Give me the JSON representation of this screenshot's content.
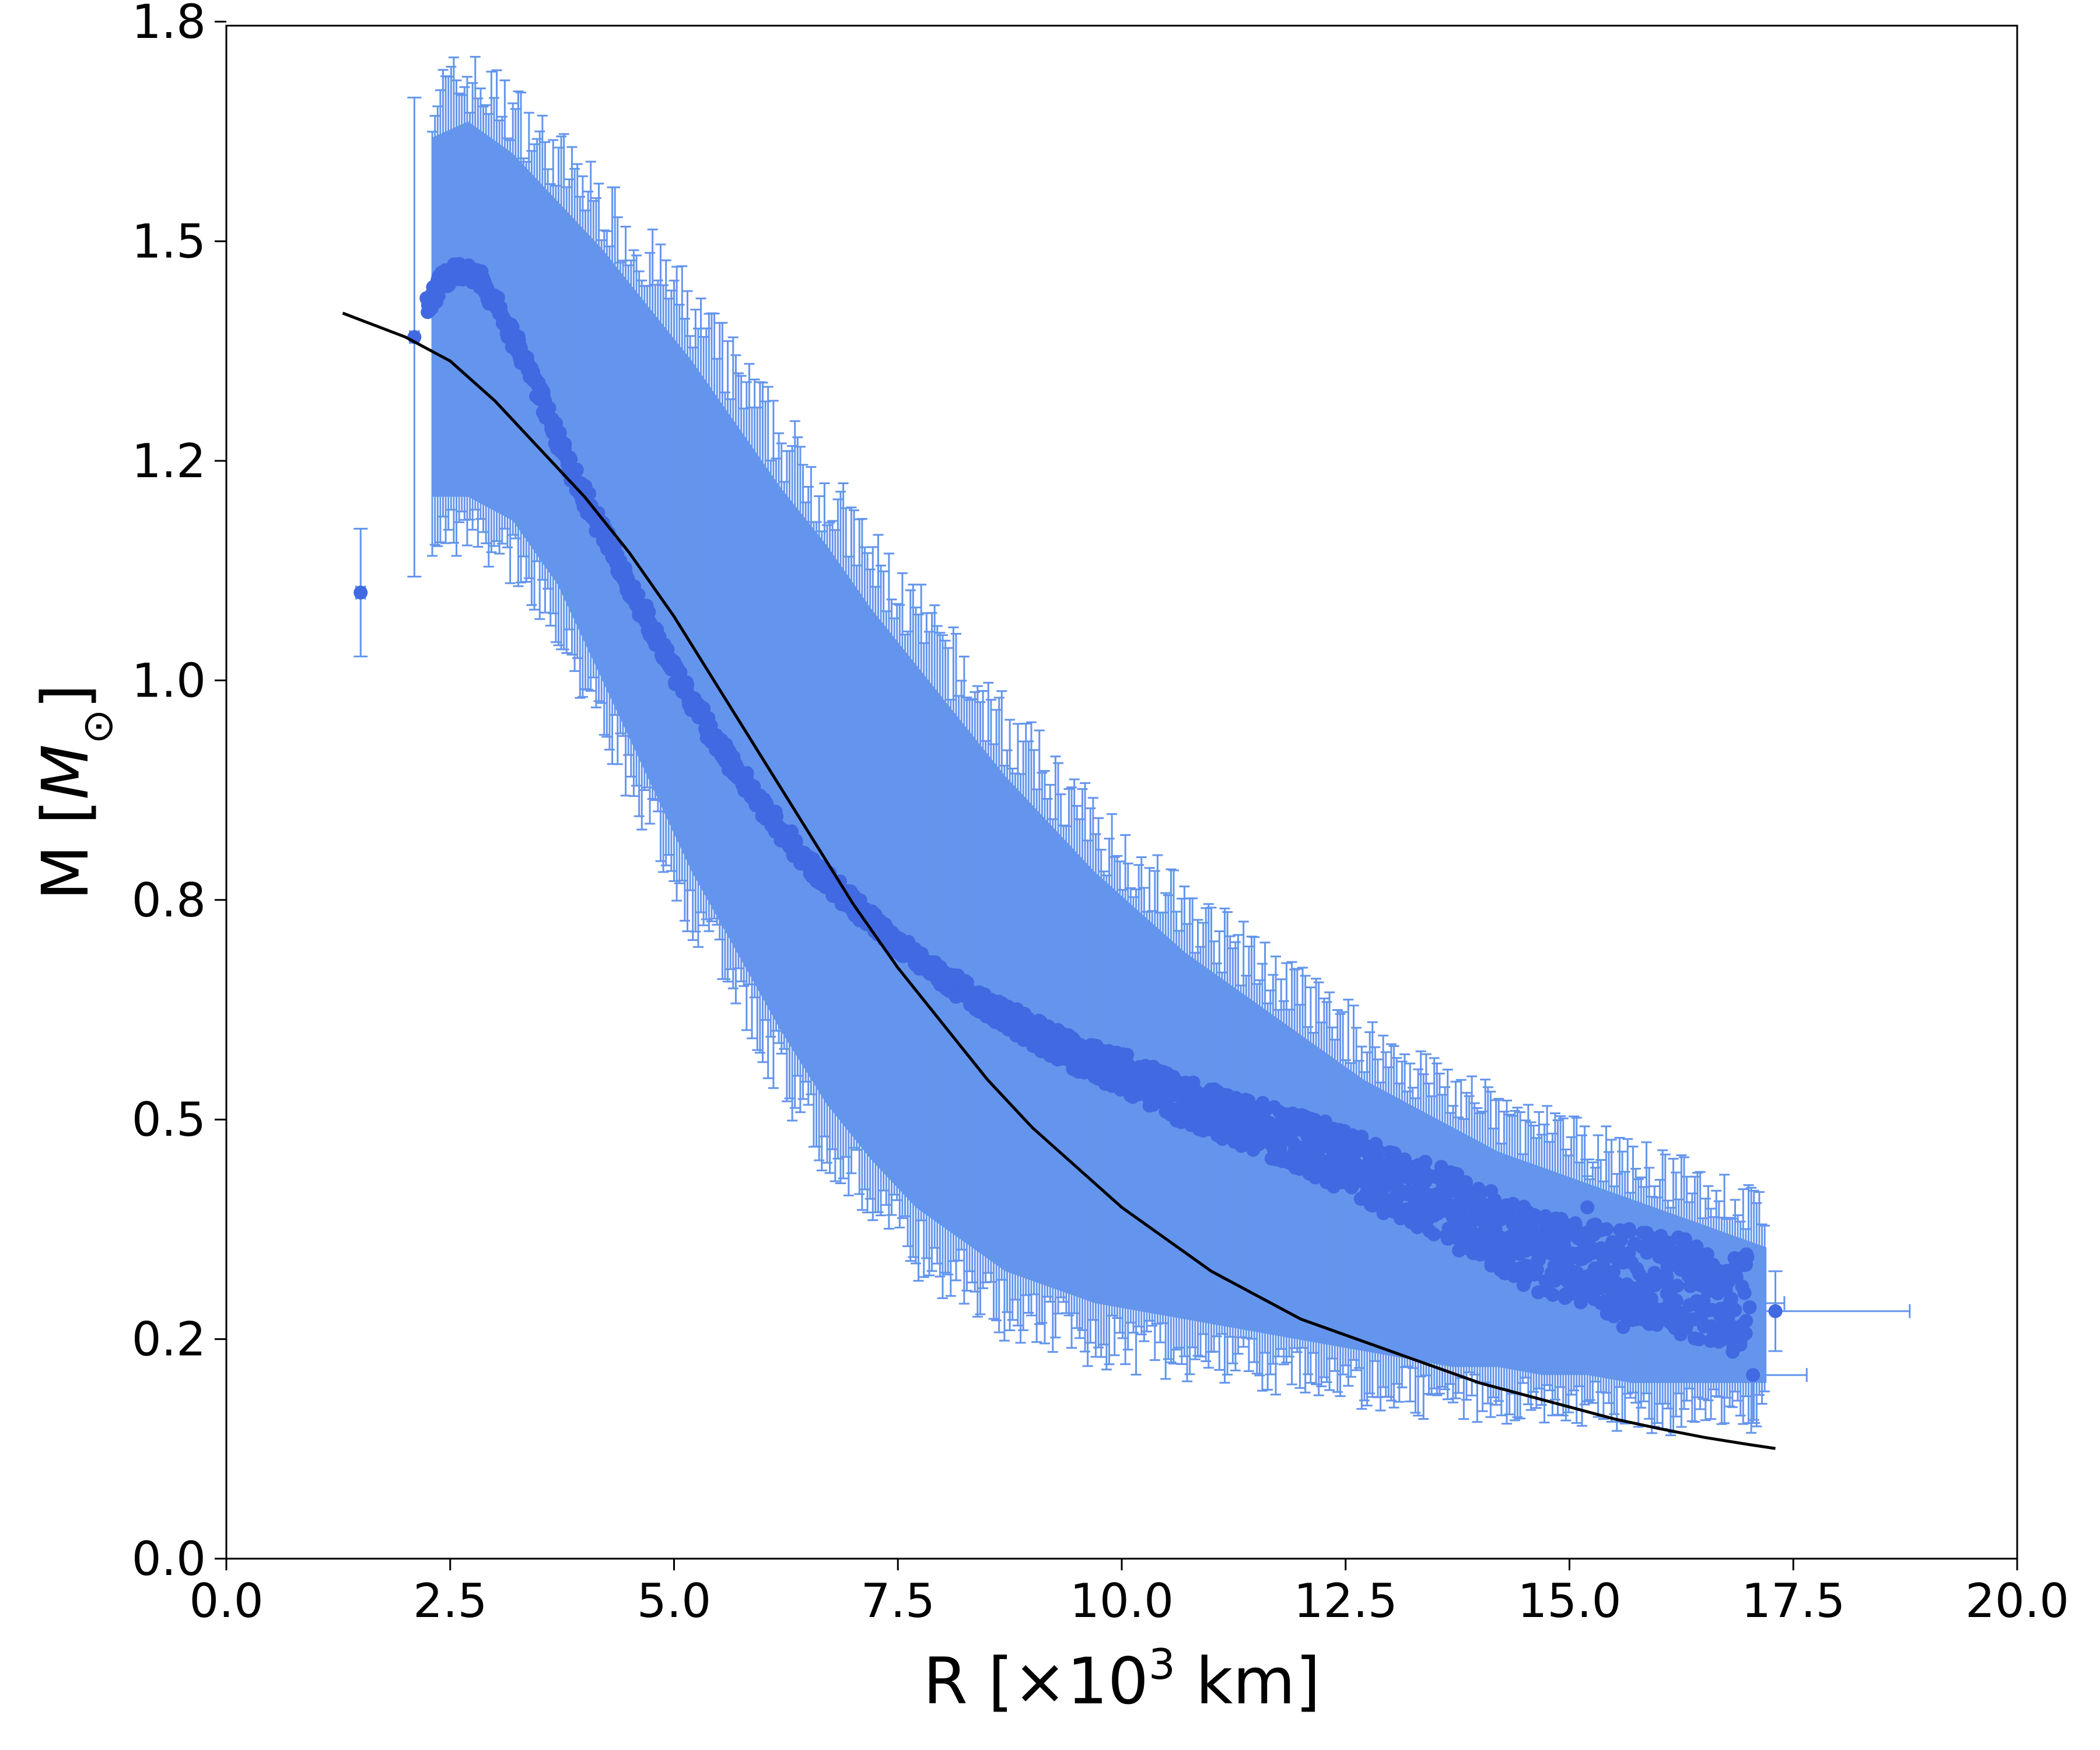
{
  "chart_data": {
    "type": "scatter",
    "xlabel": {
      "pre": "R [×10",
      "sup": "3",
      "post": " km]"
    },
    "ylabel": {
      "pre": "M [",
      "italic": "M",
      "sub": "⊙",
      "post": "]"
    },
    "xlim": [
      0,
      20
    ],
    "ylim": [
      0,
      1.92
    ],
    "xticks": [
      "0.0",
      "2.5",
      "5.0",
      "7.5",
      "10.0",
      "12.5",
      "15.0",
      "17.5",
      "20.0"
    ],
    "xtick_values": [
      0,
      2.5,
      5,
      7.5,
      10,
      12.5,
      15,
      17.5,
      20
    ],
    "yticks": [
      "0.0",
      "0.2",
      "0.5",
      "0.8",
      "1.0",
      "1.2",
      "1.5",
      "1.8"
    ],
    "ytick_values": [
      0,
      0.275,
      0.55,
      0.825,
      1.1,
      1.375,
      1.65,
      1.925
    ],
    "grid": false,
    "colors": {
      "points": "#4169e1",
      "errorbars": "#6495ed",
      "fit": "#000000"
    },
    "series": [
      {
        "kind": "points_with_errorbars",
        "ridge": [
          [
            2.25,
            1.57
          ],
          [
            2.4,
            1.6
          ],
          [
            2.55,
            1.61
          ],
          [
            2.7,
            1.61
          ],
          [
            2.85,
            1.6
          ],
          [
            3.0,
            1.57
          ],
          [
            3.25,
            1.52
          ],
          [
            3.5,
            1.46
          ],
          [
            3.75,
            1.39
          ],
          [
            4.0,
            1.33
          ],
          [
            4.5,
            1.22
          ],
          [
            5.0,
            1.11
          ],
          [
            5.5,
            1.02
          ],
          [
            6.0,
            0.94
          ],
          [
            6.5,
            0.87
          ],
          [
            7.0,
            0.82
          ],
          [
            7.5,
            0.77
          ],
          [
            8.0,
            0.73
          ],
          [
            8.5,
            0.69
          ],
          [
            9.0,
            0.66
          ],
          [
            9.5,
            0.63
          ],
          [
            10.0,
            0.61
          ],
          [
            10.5,
            0.58
          ],
          [
            11.0,
            0.56
          ],
          [
            11.5,
            0.54
          ],
          [
            12.0,
            0.52
          ],
          [
            12.5,
            0.5
          ],
          [
            13.0,
            0.47
          ],
          [
            13.5,
            0.45
          ],
          [
            14.0,
            0.42
          ],
          [
            14.5,
            0.39
          ],
          [
            15.0,
            0.37
          ],
          [
            15.5,
            0.36
          ],
          [
            16.0,
            0.35
          ],
          [
            16.5,
            0.33
          ],
          [
            17.0,
            0.32
          ]
        ],
        "band_upper": [
          [
            2.3,
            1.78
          ],
          [
            2.7,
            1.8
          ],
          [
            3.2,
            1.76
          ],
          [
            3.7,
            1.7
          ],
          [
            4.2,
            1.64
          ],
          [
            4.7,
            1.57
          ],
          [
            5.2,
            1.5
          ],
          [
            5.7,
            1.42
          ],
          [
            6.2,
            1.34
          ],
          [
            6.7,
            1.27
          ],
          [
            7.2,
            1.19
          ],
          [
            7.7,
            1.12
          ],
          [
            8.2,
            1.05
          ],
          [
            8.7,
            0.98
          ],
          [
            9.2,
            0.92
          ],
          [
            9.7,
            0.86
          ],
          [
            10.2,
            0.81
          ],
          [
            10.7,
            0.76
          ],
          [
            11.2,
            0.72
          ],
          [
            11.7,
            0.68
          ],
          [
            12.2,
            0.64
          ],
          [
            12.7,
            0.6
          ],
          [
            13.2,
            0.57
          ],
          [
            13.7,
            0.54
          ],
          [
            14.2,
            0.51
          ],
          [
            14.7,
            0.49
          ],
          [
            15.2,
            0.47
          ],
          [
            15.7,
            0.45
          ],
          [
            16.2,
            0.43
          ],
          [
            16.7,
            0.41
          ],
          [
            17.2,
            0.39
          ]
        ],
        "band_lower": [
          [
            2.3,
            1.33
          ],
          [
            2.7,
            1.33
          ],
          [
            3.2,
            1.3
          ],
          [
            3.7,
            1.22
          ],
          [
            4.2,
            1.1
          ],
          [
            4.7,
            0.98
          ],
          [
            5.2,
            0.86
          ],
          [
            5.7,
            0.76
          ],
          [
            6.2,
            0.66
          ],
          [
            6.7,
            0.57
          ],
          [
            7.2,
            0.5
          ],
          [
            7.7,
            0.44
          ],
          [
            8.2,
            0.4
          ],
          [
            8.7,
            0.36
          ],
          [
            9.2,
            0.34
          ],
          [
            9.7,
            0.32
          ],
          [
            10.2,
            0.31
          ],
          [
            10.7,
            0.3
          ],
          [
            11.2,
            0.29
          ],
          [
            11.7,
            0.28
          ],
          [
            12.2,
            0.27
          ],
          [
            12.7,
            0.26
          ],
          [
            13.2,
            0.25
          ],
          [
            13.7,
            0.24
          ],
          [
            14.2,
            0.24
          ],
          [
            14.7,
            0.23
          ],
          [
            15.2,
            0.23
          ],
          [
            15.7,
            0.22
          ],
          [
            16.2,
            0.22
          ],
          [
            16.7,
            0.22
          ],
          [
            17.2,
            0.22
          ]
        ],
        "outliers": [
          {
            "x": 1.5,
            "y": 1.21,
            "xerr": 0.05,
            "ylo": 1.13,
            "yhi": 1.29
          },
          {
            "x": 2.1,
            "y": 1.53,
            "xerr": 0.05,
            "ylo": 1.23,
            "yhi": 1.83
          },
          {
            "x": 15.2,
            "y": 0.44,
            "xerr": 0.6,
            "ylo": 0.39,
            "yhi": 0.5
          },
          {
            "x": 15.6,
            "y": 0.29,
            "xerr": 0.6,
            "ylo": 0.24,
            "yhi": 0.34
          },
          {
            "x": 16.1,
            "y": 0.3,
            "xerr": 0.6,
            "ylo": 0.25,
            "yhi": 0.35
          },
          {
            "x": 16.3,
            "y": 0.36,
            "xerr": 0.6,
            "ylo": 0.31,
            "yhi": 0.41
          },
          {
            "x": 16.4,
            "y": 0.3,
            "xerr": 0.6,
            "ylo": 0.25,
            "yhi": 0.35
          },
          {
            "x": 16.8,
            "y": 0.32,
            "xerr": 0.6,
            "ylo": 0.27,
            "yhi": 0.37
          },
          {
            "x": 17.05,
            "y": 0.23,
            "xerr": 0.6,
            "ylo": 0.17,
            "yhi": 0.29
          },
          {
            "x": 17.3,
            "y": 0.31,
            "xerr": 1.5,
            "ylo": 0.26,
            "yhi": 0.36
          }
        ]
      },
      {
        "kind": "line",
        "points": [
          [
            1.3,
            1.56
          ],
          [
            2.0,
            1.53
          ],
          [
            2.5,
            1.5
          ],
          [
            3.0,
            1.45
          ],
          [
            3.5,
            1.39
          ],
          [
            4.0,
            1.33
          ],
          [
            4.5,
            1.26
          ],
          [
            5.0,
            1.18
          ],
          [
            5.5,
            1.09
          ],
          [
            6.0,
            1.0
          ],
          [
            6.5,
            0.91
          ],
          [
            7.0,
            0.82
          ],
          [
            7.5,
            0.74
          ],
          [
            8.0,
            0.67
          ],
          [
            8.5,
            0.6
          ],
          [
            9.0,
            0.54
          ],
          [
            9.5,
            0.49
          ],
          [
            10.0,
            0.44
          ],
          [
            10.5,
            0.4
          ],
          [
            11.0,
            0.36
          ],
          [
            11.5,
            0.33
          ],
          [
            12.0,
            0.3
          ],
          [
            12.5,
            0.28
          ],
          [
            13.0,
            0.26
          ],
          [
            13.5,
            0.24
          ],
          [
            14.0,
            0.22
          ],
          [
            14.5,
            0.205
          ],
          [
            15.0,
            0.19
          ],
          [
            15.5,
            0.175
          ],
          [
            16.0,
            0.163
          ],
          [
            16.5,
            0.152
          ],
          [
            17.0,
            0.143
          ],
          [
            17.3,
            0.138
          ]
        ]
      }
    ]
  }
}
